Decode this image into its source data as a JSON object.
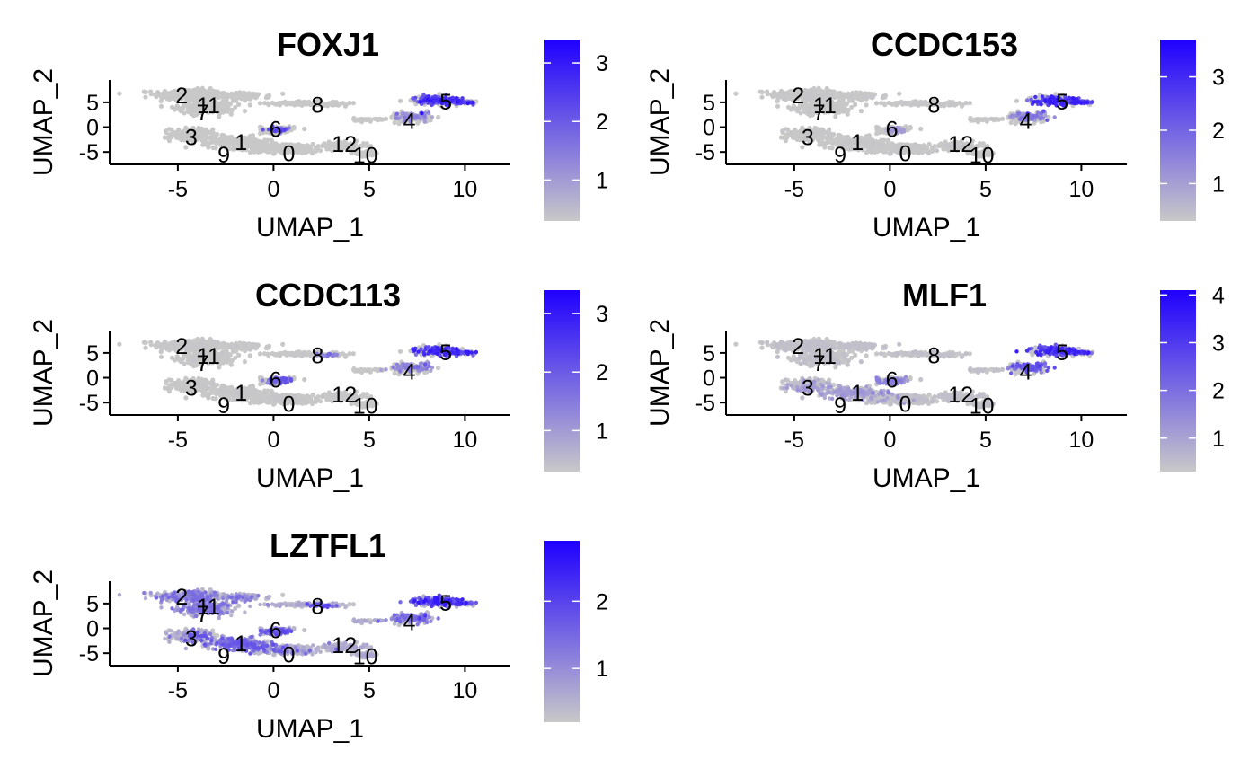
{
  "colors": {
    "low": "#c8c8c8",
    "high": "#1f00ff",
    "axis": "#000000"
  },
  "chart_data": [
    {
      "type": "scatter",
      "title": "FOXJ1",
      "xlabel": "UMAP_1",
      "ylabel": "UMAP_2",
      "xlim": [
        -8,
        12
      ],
      "ylim": [
        -7.5,
        9.5
      ],
      "xticks": [
        "-5",
        "0",
        "5",
        "10"
      ],
      "yticks": [
        "-5",
        "0",
        "5"
      ],
      "colorbar": {
        "min": 0.3,
        "max": 3.4,
        "ticks": [
          "1",
          "2",
          "3"
        ]
      },
      "hotspots": [
        {
          "x": 8.8,
          "y": 5.5,
          "level": 3.1,
          "spread": 2.0
        },
        {
          "x": 7.5,
          "y": 2.5,
          "level": 1.5,
          "spread": 1.2
        },
        {
          "x": 0.3,
          "y": -0.5,
          "level": 2.5,
          "spread": 0.5
        }
      ],
      "background_level": 0.3,
      "clusters": [
        {
          "label": "0",
          "x": 0.8,
          "y": -5.2
        },
        {
          "label": "1",
          "x": -1.7,
          "y": -3.0
        },
        {
          "label": "2",
          "x": -4.8,
          "y": 6.4
        },
        {
          "label": "3",
          "x": -4.3,
          "y": -2.0
        },
        {
          "label": "4",
          "x": 7.1,
          "y": 1.3
        },
        {
          "label": "5",
          "x": 9.0,
          "y": 5.2
        },
        {
          "label": "6",
          "x": 0.1,
          "y": -0.4
        },
        {
          "label": "7",
          "x": -3.7,
          "y": 3.0
        },
        {
          "label": "8",
          "x": 2.3,
          "y": 4.5
        },
        {
          "label": "9",
          "x": -2.6,
          "y": -5.5
        },
        {
          "label": "10",
          "x": 4.8,
          "y": -5.6
        },
        {
          "label": "11",
          "x": -3.4,
          "y": 4.4
        },
        {
          "label": "12",
          "x": 3.7,
          "y": -3.3
        }
      ]
    },
    {
      "type": "scatter",
      "title": "CCDC153",
      "xlabel": "UMAP_1",
      "ylabel": "UMAP_2",
      "xlim": [
        -8,
        12
      ],
      "ylim": [
        -7.5,
        9.5
      ],
      "xticks": [
        "-5",
        "0",
        "5",
        "10"
      ],
      "yticks": [
        "-5",
        "0",
        "5"
      ],
      "colorbar": {
        "min": 0.3,
        "max": 3.7,
        "ticks": [
          "1",
          "2",
          "3"
        ]
      },
      "hotspots": [
        {
          "x": 8.8,
          "y": 5.5,
          "level": 3.3,
          "spread": 2.0
        },
        {
          "x": 7.5,
          "y": 2.5,
          "level": 1.8,
          "spread": 1.2
        },
        {
          "x": 0.5,
          "y": -0.5,
          "level": 1.2,
          "spread": 0.6
        }
      ],
      "background_level": 0.35,
      "clusters": [
        {
          "label": "0",
          "x": 0.8,
          "y": -5.2
        },
        {
          "label": "1",
          "x": -1.7,
          "y": -3.0
        },
        {
          "label": "2",
          "x": -4.8,
          "y": 6.4
        },
        {
          "label": "3",
          "x": -4.3,
          "y": -2.0
        },
        {
          "label": "4",
          "x": 7.1,
          "y": 1.3
        },
        {
          "label": "5",
          "x": 9.0,
          "y": 5.2
        },
        {
          "label": "6",
          "x": 0.1,
          "y": -0.4
        },
        {
          "label": "7",
          "x": -3.7,
          "y": 3.0
        },
        {
          "label": "8",
          "x": 2.3,
          "y": 4.5
        },
        {
          "label": "9",
          "x": -2.6,
          "y": -5.5
        },
        {
          "label": "10",
          "x": 4.8,
          "y": -5.6
        },
        {
          "label": "11",
          "x": -3.4,
          "y": 4.4
        },
        {
          "label": "12",
          "x": 3.7,
          "y": -3.3
        }
      ]
    },
    {
      "type": "scatter",
      "title": "CCDC113",
      "xlabel": "UMAP_1",
      "ylabel": "UMAP_2",
      "xlim": [
        -8,
        12
      ],
      "ylim": [
        -7.5,
        9.5
      ],
      "xticks": [
        "-5",
        "0",
        "5",
        "10"
      ],
      "yticks": [
        "-5",
        "0",
        "5"
      ],
      "colorbar": {
        "min": 0.3,
        "max": 3.4,
        "ticks": [
          "1",
          "2",
          "3"
        ]
      },
      "hotspots": [
        {
          "x": 8.8,
          "y": 5.5,
          "level": 3.0,
          "spread": 2.0
        },
        {
          "x": 7.5,
          "y": 2.5,
          "level": 1.6,
          "spread": 1.2
        },
        {
          "x": 0.3,
          "y": -0.5,
          "level": 2.2,
          "spread": 0.8
        },
        {
          "x": 2.8,
          "y": 4.5,
          "level": 1.8,
          "spread": 0.5
        }
      ],
      "background_level": 0.35,
      "clusters": [
        {
          "label": "0",
          "x": 0.8,
          "y": -5.2
        },
        {
          "label": "1",
          "x": -1.7,
          "y": -3.0
        },
        {
          "label": "2",
          "x": -4.8,
          "y": 6.4
        },
        {
          "label": "3",
          "x": -4.3,
          "y": -2.0
        },
        {
          "label": "4",
          "x": 7.1,
          "y": 1.3
        },
        {
          "label": "5",
          "x": 9.0,
          "y": 5.2
        },
        {
          "label": "6",
          "x": 0.1,
          "y": -0.4
        },
        {
          "label": "7",
          "x": -3.7,
          "y": 3.0
        },
        {
          "label": "8",
          "x": 2.3,
          "y": 4.5
        },
        {
          "label": "9",
          "x": -2.6,
          "y": -5.5
        },
        {
          "label": "10",
          "x": 4.8,
          "y": -5.6
        },
        {
          "label": "11",
          "x": -3.4,
          "y": 4.4
        },
        {
          "label": "12",
          "x": 3.7,
          "y": -3.3
        }
      ]
    },
    {
      "type": "scatter",
      "title": "MLF1",
      "xlabel": "UMAP_1",
      "ylabel": "UMAP_2",
      "xlim": [
        -8,
        12
      ],
      "ylim": [
        -7.5,
        9.5
      ],
      "xticks": [
        "-5",
        "0",
        "5",
        "10"
      ],
      "yticks": [
        "-5",
        "0",
        "5"
      ],
      "colorbar": {
        "min": 0.3,
        "max": 4.1,
        "ticks": [
          "1",
          "2",
          "3",
          "4"
        ]
      },
      "hotspots": [
        {
          "x": 8.8,
          "y": 5.5,
          "level": 3.6,
          "spread": 2.2
        },
        {
          "x": 7.5,
          "y": 2.5,
          "level": 2.8,
          "spread": 1.5
        },
        {
          "x": 0.3,
          "y": -1.0,
          "level": 1.8,
          "spread": 1.5
        },
        {
          "x": -3.0,
          "y": -3.0,
          "level": 1.3,
          "spread": 2.0
        }
      ],
      "background_level": 0.5,
      "clusters": [
        {
          "label": "0",
          "x": 0.8,
          "y": -5.2
        },
        {
          "label": "1",
          "x": -1.7,
          "y": -3.0
        },
        {
          "label": "2",
          "x": -4.8,
          "y": 6.4
        },
        {
          "label": "3",
          "x": -4.3,
          "y": -2.0
        },
        {
          "label": "4",
          "x": 7.1,
          "y": 1.3
        },
        {
          "label": "5",
          "x": 9.0,
          "y": 5.2
        },
        {
          "label": "6",
          "x": 0.1,
          "y": -0.4
        },
        {
          "label": "7",
          "x": -3.7,
          "y": 3.0
        },
        {
          "label": "8",
          "x": 2.3,
          "y": 4.5
        },
        {
          "label": "9",
          "x": -2.6,
          "y": -5.5
        },
        {
          "label": "10",
          "x": 4.8,
          "y": -5.6
        },
        {
          "label": "11",
          "x": -3.4,
          "y": 4.4
        },
        {
          "label": "12",
          "x": 3.7,
          "y": -3.3
        }
      ]
    },
    {
      "type": "scatter",
      "title": "LZTFL1",
      "xlabel": "UMAP_1",
      "ylabel": "UMAP_2",
      "xlim": [
        -8,
        12
      ],
      "ylim": [
        -7.5,
        9.5
      ],
      "xticks": [
        "-5",
        "0",
        "5",
        "10"
      ],
      "yticks": [
        "-5",
        "0",
        "5"
      ],
      "colorbar": {
        "min": 0.2,
        "max": 2.9,
        "ticks": [
          "1",
          "2"
        ]
      },
      "hotspots": [
        {
          "x": 8.8,
          "y": 5.5,
          "level": 2.6,
          "spread": 2.0
        },
        {
          "x": 7.5,
          "y": 2.5,
          "level": 1.6,
          "spread": 1.5
        },
        {
          "x": -4.0,
          "y": 5.0,
          "level": 1.5,
          "spread": 2.5
        },
        {
          "x": -2.0,
          "y": -3.0,
          "level": 1.8,
          "spread": 2.5
        },
        {
          "x": 0.5,
          "y": -1.0,
          "level": 2.0,
          "spread": 1.0
        },
        {
          "x": 2.5,
          "y": 4.5,
          "level": 2.0,
          "spread": 0.6
        }
      ],
      "background_level": 0.7,
      "clusters": [
        {
          "label": "0",
          "x": 0.8,
          "y": -5.2
        },
        {
          "label": "1",
          "x": -1.7,
          "y": -3.0
        },
        {
          "label": "2",
          "x": -4.8,
          "y": 6.4
        },
        {
          "label": "3",
          "x": -4.3,
          "y": -2.0
        },
        {
          "label": "4",
          "x": 7.1,
          "y": 1.3
        },
        {
          "label": "5",
          "x": 9.0,
          "y": 5.2
        },
        {
          "label": "6",
          "x": 0.1,
          "y": -0.4
        },
        {
          "label": "7",
          "x": -3.7,
          "y": 3.0
        },
        {
          "label": "8",
          "x": 2.3,
          "y": 4.5
        },
        {
          "label": "9",
          "x": -2.6,
          "y": -5.5
        },
        {
          "label": "10",
          "x": 4.8,
          "y": -5.6
        },
        {
          "label": "11",
          "x": -3.4,
          "y": 4.4
        },
        {
          "label": "12",
          "x": 3.7,
          "y": -3.3
        }
      ]
    }
  ]
}
